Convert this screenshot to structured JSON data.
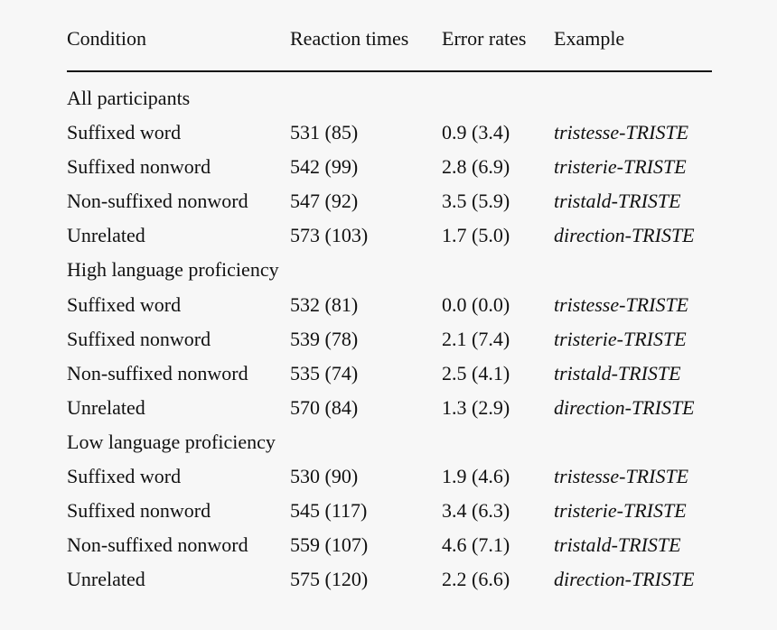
{
  "table": {
    "headers": {
      "condition": "Condition",
      "reaction_times": "Reaction times",
      "error_rates": "Error rates",
      "example": "Example"
    },
    "groups": [
      {
        "title": "All participants",
        "rows": [
          {
            "condition": "Suffixed word",
            "rt": "531 (85)",
            "er": "0.9 (3.4)",
            "example": "tristesse-TRISTE"
          },
          {
            "condition": "Suffixed nonword",
            "rt": "542 (99)",
            "er": "2.8 (6.9)",
            "example": "tristerie-TRISTE"
          },
          {
            "condition": "Non-suffixed nonword",
            "rt": "547 (92)",
            "er": "3.5 (5.9)",
            "example": "tristald-TRISTE"
          },
          {
            "condition": "Unrelated",
            "rt": "573 (103)",
            "er": "1.7 (5.0)",
            "example": "direction-TRISTE"
          }
        ]
      },
      {
        "title": "High language proficiency",
        "rows": [
          {
            "condition": "Suffixed word",
            "rt": "532 (81)",
            "er": "0.0 (0.0)",
            "example": "tristesse-TRISTE"
          },
          {
            "condition": "Suffixed nonword",
            "rt": "539 (78)",
            "er": "2.1 (7.4)",
            "example": "tristerie-TRISTE"
          },
          {
            "condition": "Non-suffixed nonword",
            "rt": "535 (74)",
            "er": "2.5 (4.1)",
            "example": "tristald-TRISTE"
          },
          {
            "condition": "Unrelated",
            "rt": "570 (84)",
            "er": "1.3 (2.9)",
            "example": "direction-TRISTE"
          }
        ]
      },
      {
        "title": "Low language proficiency",
        "rows": [
          {
            "condition": "Suffixed word",
            "rt": "530 (90)",
            "er": "1.9 (4.6)",
            "example": "tristesse-TRISTE"
          },
          {
            "condition": "Suffixed nonword",
            "rt": "545 (117)",
            "er": "3.4 (6.3)",
            "example": "tristerie-TRISTE"
          },
          {
            "condition": "Non-suffixed nonword",
            "rt": "559 (107)",
            "er": "4.6 (7.1)",
            "example": "tristald-TRISTE"
          },
          {
            "condition": "Unrelated",
            "rt": "575 (120)",
            "er": "2.2 (6.6)",
            "example": "direction-TRISTE"
          }
        ]
      }
    ]
  }
}
